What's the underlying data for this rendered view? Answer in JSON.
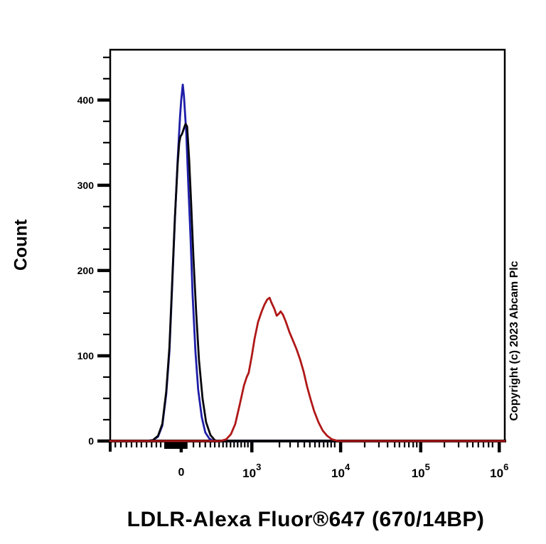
{
  "figure": {
    "background": "#ffffff",
    "copyright": "Copyright (c) 2023 Abcam Plc"
  },
  "chart_data": {
    "type": "line",
    "subtype": "flow-cytometry-histogram-overlay",
    "title": "LDLR-Alexa Fluor®647 (670/14BP)",
    "xlabel": "LDLR-Alexa Fluor®647 (670/14BP)",
    "ylabel": "Count",
    "x_scale": "biexponential-log",
    "grid": "off",
    "legend": "none",
    "ylim": [
      0,
      459
    ],
    "y_axis": {
      "ticks": [
        {
          "value": 0,
          "label": "0"
        },
        {
          "value": 100,
          "label": "100"
        },
        {
          "value": 200,
          "label": "200"
        },
        {
          "value": 300,
          "label": "300"
        },
        {
          "value": 400,
          "label": "400"
        }
      ],
      "minor_tick_step": 25,
      "minor_tick_max": 450
    },
    "x_axis": {
      "major_ticks": [
        {
          "pos_pct": 18.0,
          "label": "0"
        },
        {
          "pos_pct": 35.9,
          "base": "10",
          "exp": "3"
        },
        {
          "pos_pct": 58.4,
          "base": "10",
          "exp": "4"
        },
        {
          "pos_pct": 78.7,
          "base": "10",
          "exp": "5"
        },
        {
          "pos_pct": 98.6,
          "base": "10",
          "exp": "6"
        }
      ],
      "edge_tick_pct": 0,
      "zero_band_pct": [
        13.7,
        19.6
      ],
      "minor_ticks_pct": [
        1.3,
        2.7,
        4.1,
        5.4,
        6.7,
        7.9,
        9.2,
        10.5,
        11.7,
        12.8,
        21.1,
        22.7,
        24.1,
        25.4,
        26.5,
        27.6,
        28.6,
        29.5,
        30.5,
        31.4,
        32.3,
        33.2,
        34.1,
        34.9,
        42.9,
        45.6,
        47.6,
        49.2,
        50.6,
        51.9,
        53.0,
        54.1,
        55.1,
        56.0,
        56.9,
        64.5,
        68.1,
        70.3,
        72.1,
        73.3,
        74.6,
        75.7,
        76.8,
        77.7,
        84.7,
        88.3,
        90.5,
        91.9,
        93.3,
        94.6,
        95.9,
        96.9
      ]
    },
    "series": [
      {
        "name": "blue-control-curve",
        "color": "#1e1ea8",
        "peak_count": 418,
        "points": [
          [
            0,
            0
          ],
          [
            9.0,
            0
          ],
          [
            10.8,
            1
          ],
          [
            12.1,
            5
          ],
          [
            13.2,
            18
          ],
          [
            14.2,
            55
          ],
          [
            15.0,
            105
          ],
          [
            15.7,
            180
          ],
          [
            16.4,
            260
          ],
          [
            17.1,
            330
          ],
          [
            17.7,
            380
          ],
          [
            18.0,
            400
          ],
          [
            18.4,
            418
          ],
          [
            18.7,
            404
          ],
          [
            19.3,
            360
          ],
          [
            19.8,
            300
          ],
          [
            20.4,
            235
          ],
          [
            20.9,
            170
          ],
          [
            21.6,
            105
          ],
          [
            22.3,
            60
          ],
          [
            23.2,
            28
          ],
          [
            24.1,
            10
          ],
          [
            25.1,
            3
          ],
          [
            26.1,
            0
          ],
          [
            100,
            0
          ]
        ]
      },
      {
        "name": "black-control-curve",
        "color": "#06060e",
        "peak_count": 372,
        "points": [
          [
            0,
            0
          ],
          [
            9.0,
            0
          ],
          [
            10.8,
            1
          ],
          [
            12.1,
            6
          ],
          [
            13.2,
            20
          ],
          [
            14.2,
            58
          ],
          [
            15.0,
            110
          ],
          [
            15.7,
            185
          ],
          [
            16.4,
            262
          ],
          [
            17.1,
            325
          ],
          [
            17.5,
            350
          ],
          [
            17.8,
            357
          ],
          [
            18.2,
            360
          ],
          [
            18.7,
            367
          ],
          [
            19.1,
            372
          ],
          [
            19.5,
            369
          ],
          [
            20.0,
            331
          ],
          [
            20.5,
            280
          ],
          [
            21.1,
            215
          ],
          [
            21.8,
            150
          ],
          [
            22.5,
            95
          ],
          [
            23.4,
            50
          ],
          [
            24.3,
            22
          ],
          [
            25.4,
            7
          ],
          [
            26.5,
            1
          ],
          [
            27.4,
            0
          ],
          [
            100,
            0
          ]
        ]
      },
      {
        "name": "red-ldlr-stained-curve",
        "color": "#b01818",
        "peak_count": 168,
        "points": [
          [
            0,
            0
          ],
          [
            27.9,
            0
          ],
          [
            29.4,
            2
          ],
          [
            30.6,
            8
          ],
          [
            31.7,
            20
          ],
          [
            32.8,
            42
          ],
          [
            33.9,
            65
          ],
          [
            34.6,
            75
          ],
          [
            35.1,
            80
          ],
          [
            35.9,
            100
          ],
          [
            36.6,
            120
          ],
          [
            37.5,
            140
          ],
          [
            38.4,
            152
          ],
          [
            39.1,
            160
          ],
          [
            39.8,
            166
          ],
          [
            40.4,
            168
          ],
          [
            40.9,
            162
          ],
          [
            41.6,
            155
          ],
          [
            42.2,
            147
          ],
          [
            42.7,
            149
          ],
          [
            43.2,
            152
          ],
          [
            43.8,
            148
          ],
          [
            44.5,
            140
          ],
          [
            45.4,
            128
          ],
          [
            46.3,
            118
          ],
          [
            47.2,
            108
          ],
          [
            48.1,
            96
          ],
          [
            49.0,
            82
          ],
          [
            49.9,
            64
          ],
          [
            50.8,
            49
          ],
          [
            51.7,
            35
          ],
          [
            52.8,
            22
          ],
          [
            53.9,
            12
          ],
          [
            55.0,
            6
          ],
          [
            56.2,
            2
          ],
          [
            57.8,
            0
          ],
          [
            100,
            0
          ]
        ]
      }
    ]
  }
}
